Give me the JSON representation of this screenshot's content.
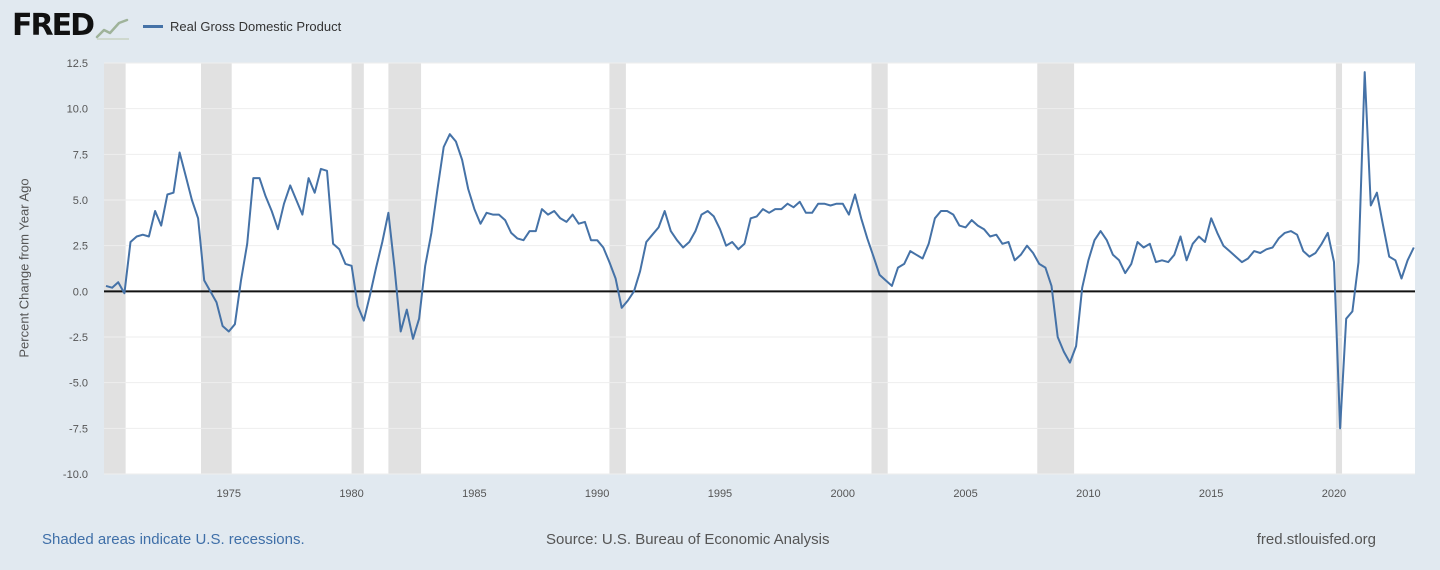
{
  "header": {
    "logo_text": "FRED",
    "logo_icon": "chart-line-icon",
    "legend_label": "Real Gross Domestic Product",
    "series_color": "#4572a7"
  },
  "footer": {
    "note": "Shaded areas indicate U.S. recessions.",
    "source": "Source: U.S. Bureau of Economic Analysis",
    "url": "fred.stlouisfed.org"
  },
  "chart_data": {
    "type": "line",
    "title": "Real Gross Domestic Product",
    "xlabel": "",
    "ylabel": "Percent Change from Year Ago",
    "ylim": [
      -10.0,
      12.5
    ],
    "xlim": [
      1969.92,
      2023.3
    ],
    "yticks": [
      12.5,
      10.0,
      7.5,
      5.0,
      2.5,
      0.0,
      -2.5,
      -5.0,
      -7.5,
      -10.0
    ],
    "ytick_labels": [
      "12.5",
      "10.0",
      "7.5",
      "5.0",
      "2.5",
      "0.0",
      "-2.5",
      "-5.0",
      "-7.5",
      "-10.0"
    ],
    "xticks": [
      1975,
      1980,
      1985,
      1990,
      1995,
      2000,
      2005,
      2010,
      2015,
      2020
    ],
    "xtick_labels": [
      "1975",
      "1980",
      "1985",
      "1990",
      "1995",
      "2000",
      "2005",
      "2010",
      "2015",
      "2020"
    ],
    "grid": true,
    "legend_position": "top-left",
    "zero_line": true,
    "recessions": [
      [
        1969.92,
        1970.8
      ],
      [
        1973.87,
        1975.12
      ],
      [
        1980.0,
        1980.5
      ],
      [
        1981.5,
        1982.83
      ],
      [
        1990.5,
        1991.17
      ],
      [
        2001.17,
        2001.83
      ],
      [
        2007.92,
        2009.42
      ],
      [
        2020.08,
        2020.33
      ]
    ],
    "series": [
      {
        "name": "Real Gross Domestic Product",
        "color": "#4572a7",
        "x": [
          1970.0,
          1970.25,
          1970.5,
          1970.75,
          1971.0,
          1971.25,
          1971.5,
          1971.75,
          1972.0,
          1972.25,
          1972.5,
          1972.75,
          1973.0,
          1973.25,
          1973.5,
          1973.75,
          1974.0,
          1974.25,
          1974.5,
          1974.75,
          1975.0,
          1975.25,
          1975.5,
          1975.75,
          1976.0,
          1976.25,
          1976.5,
          1976.75,
          1977.0,
          1977.25,
          1977.5,
          1977.75,
          1978.0,
          1978.25,
          1978.5,
          1978.75,
          1979.0,
          1979.25,
          1979.5,
          1979.75,
          1980.0,
          1980.25,
          1980.5,
          1980.75,
          1981.0,
          1981.25,
          1981.5,
          1981.75,
          1982.0,
          1982.25,
          1982.5,
          1982.75,
          1983.0,
          1983.25,
          1983.5,
          1983.75,
          1984.0,
          1984.25,
          1984.5,
          1984.75,
          1985.0,
          1985.25,
          1985.5,
          1985.75,
          1986.0,
          1986.25,
          1986.5,
          1986.75,
          1987.0,
          1987.25,
          1987.5,
          1987.75,
          1988.0,
          1988.25,
          1988.5,
          1988.75,
          1989.0,
          1989.25,
          1989.5,
          1989.75,
          1990.0,
          1990.25,
          1990.5,
          1990.75,
          1991.0,
          1991.25,
          1991.5,
          1991.75,
          1992.0,
          1992.25,
          1992.5,
          1992.75,
          1993.0,
          1993.25,
          1993.5,
          1993.75,
          1994.0,
          1994.25,
          1994.5,
          1994.75,
          1995.0,
          1995.25,
          1995.5,
          1995.75,
          1996.0,
          1996.25,
          1996.5,
          1996.75,
          1997.0,
          1997.25,
          1997.5,
          1997.75,
          1998.0,
          1998.25,
          1998.5,
          1998.75,
          1999.0,
          1999.25,
          1999.5,
          1999.75,
          2000.0,
          2000.25,
          2000.5,
          2000.75,
          2001.0,
          2001.25,
          2001.5,
          2001.75,
          2002.0,
          2002.25,
          2002.5,
          2002.75,
          2003.0,
          2003.25,
          2003.5,
          2003.75,
          2004.0,
          2004.25,
          2004.5,
          2004.75,
          2005.0,
          2005.25,
          2005.5,
          2005.75,
          2006.0,
          2006.25,
          2006.5,
          2006.75,
          2007.0,
          2007.25,
          2007.5,
          2007.75,
          2008.0,
          2008.25,
          2008.5,
          2008.75,
          2009.0,
          2009.25,
          2009.5,
          2009.75,
          2010.0,
          2010.25,
          2010.5,
          2010.75,
          2011.0,
          2011.25,
          2011.5,
          2011.75,
          2012.0,
          2012.25,
          2012.5,
          2012.75,
          2013.0,
          2013.25,
          2013.5,
          2013.75,
          2014.0,
          2014.25,
          2014.5,
          2014.75,
          2015.0,
          2015.25,
          2015.5,
          2015.75,
          2016.0,
          2016.25,
          2016.5,
          2016.75,
          2017.0,
          2017.25,
          2017.5,
          2017.75,
          2018.0,
          2018.25,
          2018.5,
          2018.75,
          2019.0,
          2019.25,
          2019.5,
          2019.75,
          2020.0,
          2020.25,
          2020.5,
          2020.75,
          2021.0,
          2021.25,
          2021.5,
          2021.75,
          2022.0,
          2022.25,
          2022.5,
          2022.75,
          2023.0,
          2023.25
        ],
        "values": [
          0.3,
          0.2,
          0.5,
          -0.1,
          2.7,
          3.0,
          3.1,
          3.0,
          4.4,
          3.6,
          5.3,
          5.4,
          7.6,
          6.3,
          5.0,
          4.0,
          0.6,
          0.0,
          -0.6,
          -1.9,
          -2.2,
          -1.8,
          0.6,
          2.6,
          6.2,
          6.2,
          5.2,
          4.4,
          3.4,
          4.8,
          5.8,
          5.0,
          4.2,
          6.2,
          5.4,
          6.7,
          6.6,
          2.6,
          2.3,
          1.5,
          1.4,
          -0.8,
          -1.6,
          -0.2,
          1.3,
          2.7,
          4.3,
          1.3,
          -2.2,
          -1.0,
          -2.6,
          -1.5,
          1.4,
          3.2,
          5.6,
          7.9,
          8.6,
          8.2,
          7.2,
          5.6,
          4.5,
          3.7,
          4.3,
          4.2,
          4.2,
          3.9,
          3.2,
          2.9,
          2.8,
          3.3,
          3.3,
          4.5,
          4.2,
          4.4,
          4.0,
          3.8,
          4.2,
          3.7,
          3.8,
          2.8,
          2.8,
          2.4,
          1.6,
          0.7,
          -0.9,
          -0.5,
          0.0,
          1.1,
          2.7,
          3.1,
          3.5,
          4.4,
          3.3,
          2.8,
          2.4,
          2.7,
          3.3,
          4.2,
          4.4,
          4.1,
          3.4,
          2.5,
          2.7,
          2.3,
          2.6,
          4.0,
          4.1,
          4.5,
          4.3,
          4.5,
          4.5,
          4.8,
          4.6,
          4.9,
          4.3,
          4.3,
          4.8,
          4.8,
          4.7,
          4.8,
          4.8,
          4.2,
          5.3,
          4.0,
          2.9,
          1.9,
          0.9,
          0.6,
          0.3,
          1.3,
          1.5,
          2.2,
          2.0,
          1.8,
          2.6,
          4.0,
          4.4,
          4.4,
          4.2,
          3.6,
          3.5,
          3.9,
          3.6,
          3.4,
          3.0,
          3.1,
          2.6,
          2.7,
          1.7,
          2.0,
          2.5,
          2.1,
          1.5,
          1.3,
          0.3,
          -2.5,
          -3.3,
          -3.9,
          -3.0,
          0.2,
          1.7,
          2.8,
          3.3,
          2.8,
          2.0,
          1.7,
          1.0,
          1.5,
          2.7,
          2.4,
          2.6,
          1.6,
          1.7,
          1.6,
          2.0,
          3.0,
          1.7,
          2.6,
          3.0,
          2.7,
          4.0,
          3.2,
          2.5,
          2.2,
          1.9,
          1.6,
          1.8,
          2.2,
          2.1,
          2.3,
          2.4,
          2.9,
          3.2,
          3.3,
          3.1,
          2.2,
          1.9,
          2.1,
          2.6,
          3.2,
          1.6,
          -7.5,
          -1.5,
          -1.1,
          1.6,
          12.0,
          4.7,
          5.4,
          3.6,
          1.9,
          1.7,
          0.7,
          1.7,
          2.4
        ]
      }
    ]
  }
}
